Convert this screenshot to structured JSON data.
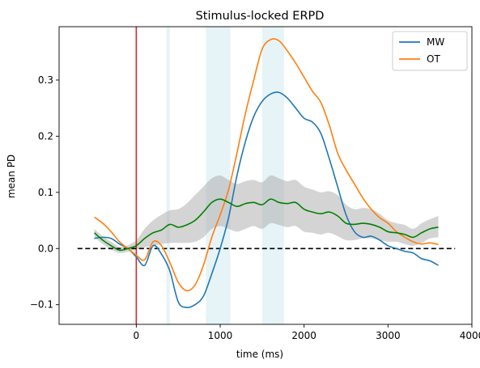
{
  "chart_data": {
    "type": "line",
    "title": "Stimulus-locked ERPD",
    "xlabel": "time (ms)",
    "ylabel": "mean PD",
    "xlim": [
      -920,
      4000
    ],
    "ylim": [
      -0.135,
      0.395
    ],
    "xticks": [
      0,
      1000,
      2000,
      3000,
      4000
    ],
    "xtick_labels": [
      "0",
      "1000",
      "2000",
      "3000",
      "4000"
    ],
    "yticks": [
      -0.1,
      0.0,
      0.1,
      0.2,
      0.3
    ],
    "ytick_labels": [
      "−0.1",
      "0.0",
      "0.1",
      "0.2",
      "0.3"
    ],
    "grid": false,
    "legend": {
      "placement": "top-right",
      "entries": [
        {
          "label": "MW",
          "color": "#1f77b4"
        },
        {
          "label": "OT",
          "color": "#ff7f0e"
        }
      ]
    },
    "shaded_regions": [
      {
        "x0": 360,
        "x1": 400,
        "color": "#add8e6"
      },
      {
        "x0": 830,
        "x1": 1120,
        "color": "#add8e6"
      },
      {
        "x0": 1500,
        "x1": 1760,
        "color": "#add8e6"
      }
    ],
    "reference_lines": [
      {
        "orientation": "vertical",
        "x": 0,
        "color": "#d62728"
      },
      {
        "orientation": "horizontal",
        "y": 0,
        "x_from": -700,
        "x_to": 3800,
        "color": "#000000",
        "style": "dashed"
      }
    ],
    "series": [
      {
        "name": "MW",
        "color": "#1f77b4",
        "x": [
          -500,
          -400,
          -300,
          -200,
          -100,
          0,
          100,
          200,
          300,
          400,
          500,
          600,
          700,
          800,
          900,
          1000,
          1100,
          1200,
          1300,
          1400,
          1500,
          1600,
          1700,
          1800,
          1900,
          2000,
          2100,
          2200,
          2300,
          2400,
          2500,
          2600,
          2700,
          2800,
          2900,
          3000,
          3100,
          3200,
          3300,
          3400,
          3500,
          3600
        ],
        "y": [
          0.018,
          0.02,
          0.018,
          0.008,
          0.0,
          -0.015,
          -0.03,
          0.005,
          -0.01,
          -0.04,
          -0.095,
          -0.105,
          -0.1,
          -0.085,
          -0.045,
          0.0,
          0.055,
          0.13,
          0.19,
          0.235,
          0.262,
          0.275,
          0.278,
          0.268,
          0.25,
          0.232,
          0.225,
          0.205,
          0.16,
          0.11,
          0.06,
          0.03,
          0.02,
          0.022,
          0.015,
          0.005,
          0.0,
          -0.005,
          -0.008,
          -0.018,
          -0.022,
          -0.03
        ]
      },
      {
        "name": "OT",
        "color": "#ff7f0e",
        "x": [
          -500,
          -400,
          -300,
          -200,
          -100,
          0,
          100,
          200,
          300,
          400,
          500,
          600,
          700,
          800,
          900,
          1000,
          1100,
          1200,
          1300,
          1400,
          1500,
          1600,
          1700,
          1800,
          1900,
          2000,
          2100,
          2200,
          2300,
          2400,
          2500,
          2600,
          2700,
          2800,
          2900,
          3000,
          3100,
          3200,
          3300,
          3400,
          3500,
          3600
        ],
        "y": [
          0.056,
          0.045,
          0.03,
          0.012,
          0.0,
          -0.012,
          -0.02,
          0.012,
          0.005,
          -0.025,
          -0.06,
          -0.075,
          -0.065,
          -0.03,
          0.02,
          0.06,
          0.105,
          0.17,
          0.24,
          0.3,
          0.355,
          0.372,
          0.37,
          0.352,
          0.33,
          0.305,
          0.28,
          0.26,
          0.22,
          0.17,
          0.14,
          0.115,
          0.09,
          0.07,
          0.055,
          0.045,
          0.03,
          0.02,
          0.012,
          0.008,
          0.01,
          0.007
        ]
      },
      {
        "name": "",
        "color": "#008000",
        "band_color": "#a9a9a9",
        "x": [
          -500,
          -400,
          -300,
          -200,
          -100,
          0,
          100,
          200,
          300,
          400,
          500,
          600,
          700,
          800,
          900,
          1000,
          1100,
          1200,
          1300,
          1400,
          1500,
          1600,
          1700,
          1800,
          1900,
          2000,
          2100,
          2200,
          2300,
          2400,
          2500,
          2600,
          2700,
          2800,
          2900,
          3000,
          3100,
          3200,
          3300,
          3400,
          3500,
          3600
        ],
        "y": [
          0.028,
          0.015,
          0.005,
          -0.003,
          0.0,
          0.005,
          0.018,
          0.028,
          0.033,
          0.043,
          0.038,
          0.042,
          0.05,
          0.065,
          0.082,
          0.088,
          0.082,
          0.075,
          0.08,
          0.082,
          0.078,
          0.088,
          0.082,
          0.08,
          0.082,
          0.07,
          0.065,
          0.062,
          0.065,
          0.058,
          0.045,
          0.043,
          0.045,
          0.043,
          0.038,
          0.03,
          0.028,
          0.025,
          0.02,
          0.028,
          0.035,
          0.038
        ],
        "ci_lower": [
          0.02,
          0.008,
          -0.002,
          -0.008,
          -0.006,
          -0.002,
          0.002,
          0.005,
          0.008,
          0.01,
          0.01,
          0.01,
          0.012,
          0.02,
          0.035,
          0.04,
          0.035,
          0.03,
          0.035,
          0.04,
          0.035,
          0.045,
          0.042,
          0.038,
          0.04,
          0.03,
          0.028,
          0.025,
          0.028,
          0.022,
          0.015,
          0.015,
          0.018,
          0.018,
          0.015,
          0.012,
          0.012,
          0.008,
          0.005,
          0.01,
          0.018,
          0.02
        ],
        "ci_upper": [
          0.035,
          0.022,
          0.012,
          0.003,
          0.006,
          0.015,
          0.035,
          0.05,
          0.06,
          0.068,
          0.07,
          0.08,
          0.095,
          0.11,
          0.125,
          0.13,
          0.122,
          0.115,
          0.12,
          0.122,
          0.118,
          0.13,
          0.125,
          0.12,
          0.122,
          0.11,
          0.105,
          0.1,
          0.102,
          0.095,
          0.078,
          0.07,
          0.072,
          0.07,
          0.062,
          0.05,
          0.045,
          0.042,
          0.035,
          0.045,
          0.052,
          0.058
        ]
      }
    ]
  }
}
